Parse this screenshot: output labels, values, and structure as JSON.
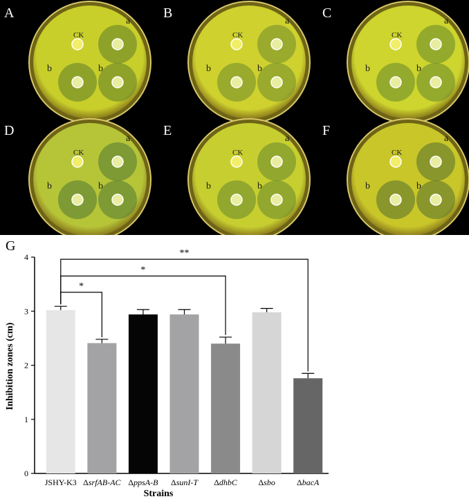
{
  "panels": {
    "photo_letters": [
      "A",
      "B",
      "C",
      "D",
      "E",
      "F"
    ],
    "chart_letter": "G"
  },
  "plate_labels": {
    "control": "CK",
    "well_a": "a",
    "well_b": "b"
  },
  "plates": [
    {
      "letter": "A",
      "agar_color": "#c9cf2a",
      "zone_color": "#5d7d2a"
    },
    {
      "letter": "B",
      "agar_color": "#cfd12e",
      "zone_color": "#6e8a2e"
    },
    {
      "letter": "C",
      "agar_color": "#cdd52e",
      "zone_color": "#66862c"
    },
    {
      "letter": "D",
      "agar_color": "#b6c438",
      "zone_color": "#4f7832"
    },
    {
      "letter": "E",
      "agar_color": "#c7cf30",
      "zone_color": "#66862e"
    },
    {
      "letter": "F",
      "agar_color": "#c9c62a",
      "zone_color": "#526f2c"
    }
  ],
  "chart_data": {
    "type": "bar",
    "title": "",
    "xlabel": "Strains",
    "ylabel": "Inhibition zones (cm)",
    "ylim": [
      0,
      4
    ],
    "yticks": [
      0,
      1,
      2,
      3,
      4
    ],
    "categories": [
      {
        "prefix": "",
        "name": "JSHY-K3",
        "italic": false
      },
      {
        "prefix": "Δ",
        "name": "srfAB-AC",
        "italic": true
      },
      {
        "prefix": "Δ",
        "name": "ppsA-B",
        "italic": true
      },
      {
        "prefix": "Δ",
        "name": "sunI-T",
        "italic": true
      },
      {
        "prefix": "Δ",
        "name": "dhbC",
        "italic": true
      },
      {
        "prefix": "Δ",
        "name": "sbo",
        "italic": true
      },
      {
        "prefix": "Δ",
        "name": "bacA",
        "italic": true
      }
    ],
    "values": [
      3.02,
      2.41,
      2.94,
      2.94,
      2.4,
      2.98,
      1.76
    ],
    "errors": [
      0.07,
      0.07,
      0.09,
      0.09,
      0.12,
      0.07,
      0.09
    ],
    "bar_colors": [
      "#e6e6e6",
      "#a3a3a6",
      "#050505",
      "#a3a3a6",
      "#8a8a8a",
      "#d6d6d6",
      "#666666"
    ],
    "significance": [
      {
        "from": 0,
        "to": 1,
        "label": "*",
        "level": 3.35
      },
      {
        "from": 0,
        "to": 4,
        "label": "*",
        "level": 3.65
      },
      {
        "from": 0,
        "to": 6,
        "label": "**",
        "level": 3.96
      }
    ]
  }
}
